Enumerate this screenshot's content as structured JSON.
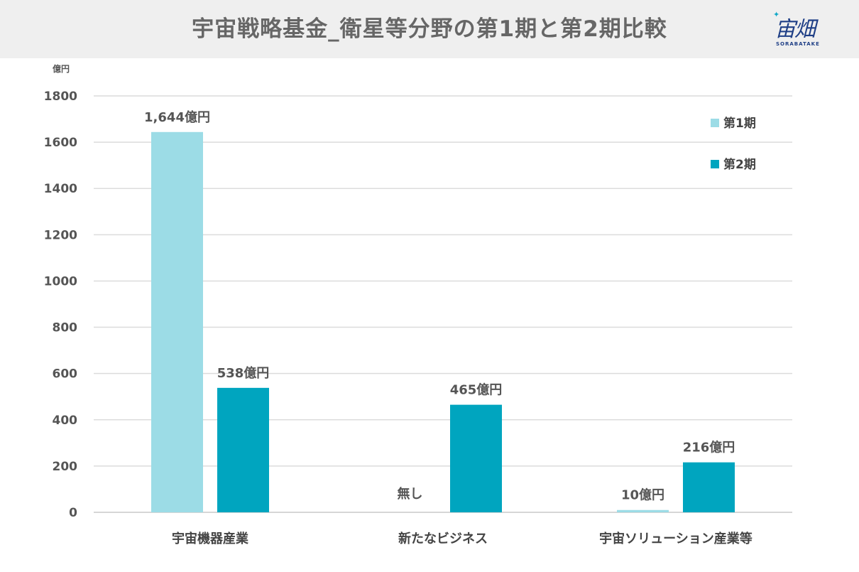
{
  "header": {
    "title": "宇宙戦略基金_衛星等分野の第1期と第2期比較",
    "logo_text": "宙畑",
    "logo_sub": "SORABATAKE"
  },
  "chart_data": {
    "type": "bar",
    "unit_label": "億円",
    "categories": [
      "宇宙機器産業",
      "新たなビジネス",
      "宇宙ソリューション産業等"
    ],
    "series": [
      {
        "name": "第1期",
        "color": "#9cdce6",
        "values": [
          1644,
          0,
          10
        ],
        "labels": [
          "1,644億円",
          "無し",
          "10億円"
        ]
      },
      {
        "name": "第2期",
        "color": "#00a5bf",
        "values": [
          538,
          465,
          216
        ],
        "labels": [
          "538億円",
          "465億円",
          "216億円"
        ]
      }
    ],
    "ylim": [
      0,
      1800
    ],
    "yticks": [
      "0",
      "200",
      "400",
      "600",
      "800",
      "1000",
      "1200",
      "1400",
      "1600",
      "1800"
    ],
    "grid": true,
    "legend_position": "top-right"
  }
}
